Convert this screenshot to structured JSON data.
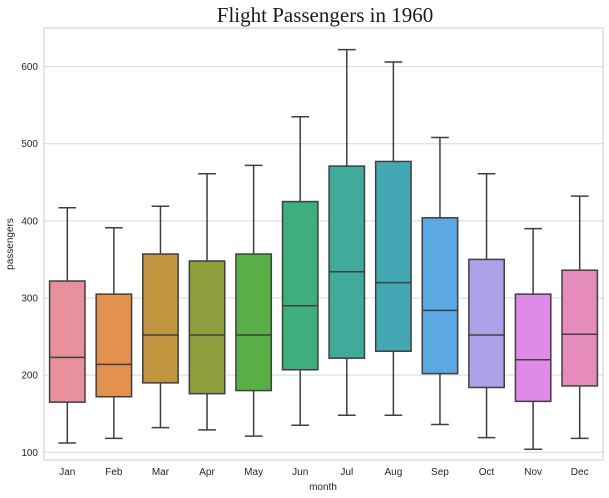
{
  "chart_data": {
    "type": "box",
    "title": "Flight Passengers in 1960",
    "xlabel": "month",
    "ylabel": "passengers",
    "ylim": [
      90,
      650
    ],
    "yticks": [
      100,
      200,
      300,
      400,
      500,
      600
    ],
    "grid": true,
    "categories": [
      "Jan",
      "Feb",
      "Mar",
      "Apr",
      "May",
      "Jun",
      "Jul",
      "Aug",
      "Sep",
      "Oct",
      "Nov",
      "Dec"
    ],
    "boxes": [
      {
        "category": "Jan",
        "min": 112,
        "q1": 165,
        "median": 223,
        "q3": 322,
        "max": 417,
        "color": "#e8919c"
      },
      {
        "category": "Feb",
        "min": 118,
        "q1": 172,
        "median": 214,
        "q3": 305,
        "max": 391,
        "color": "#e2914f"
      },
      {
        "category": "Mar",
        "min": 132,
        "q1": 190,
        "median": 252,
        "q3": 357,
        "max": 419,
        "color": "#c1953f"
      },
      {
        "category": "Apr",
        "min": 129,
        "q1": 176,
        "median": 252,
        "q3": 348,
        "max": 461,
        "color": "#8ea03e"
      },
      {
        "category": "May",
        "min": 121,
        "q1": 180,
        "median": 252,
        "q3": 357,
        "max": 472,
        "color": "#5aae46"
      },
      {
        "category": "Jun",
        "min": 135,
        "q1": 207,
        "median": 290,
        "q3": 425,
        "max": 535,
        "color": "#3fae7d"
      },
      {
        "category": "Jul",
        "min": 148,
        "q1": 222,
        "median": 334,
        "q3": 471,
        "max": 622,
        "color": "#40ab9a"
      },
      {
        "category": "Aug",
        "min": 148,
        "q1": 231,
        "median": 320,
        "q3": 477,
        "max": 606,
        "color": "#43a8b3"
      },
      {
        "category": "Sep",
        "min": 136,
        "q1": 202,
        "median": 284,
        "q3": 404,
        "max": 508,
        "color": "#5ba8e2"
      },
      {
        "category": "Oct",
        "min": 119,
        "q1": 184,
        "median": 252,
        "q3": 350,
        "max": 461,
        "color": "#ada2ea"
      },
      {
        "category": "Nov",
        "min": 104,
        "q1": 166,
        "median": 220,
        "q3": 305,
        "max": 390,
        "color": "#de8ae6"
      },
      {
        "category": "Dec",
        "min": 118,
        "q1": 186,
        "median": 253,
        "q3": 336,
        "max": 432,
        "color": "#e68cbc"
      }
    ]
  }
}
